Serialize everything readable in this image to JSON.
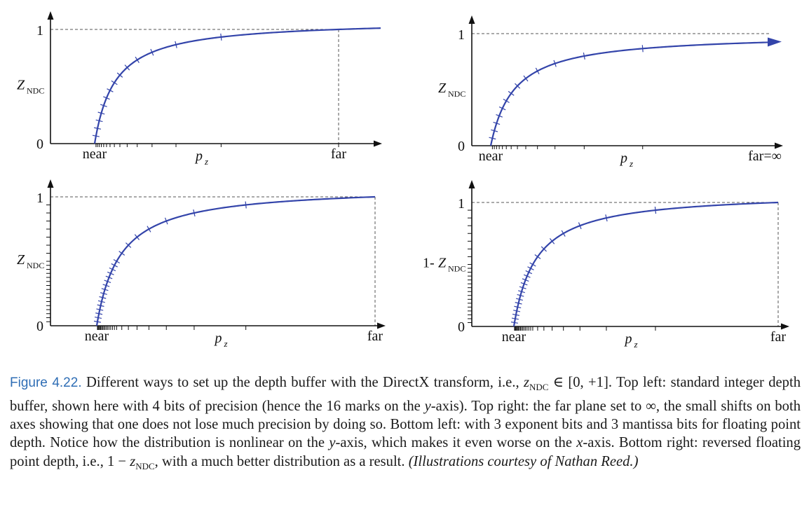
{
  "chart_data": [
    {
      "type": "line",
      "position": "top-left",
      "title": "",
      "function": "Z_NDC = (1 - near/p_z) / (1 - near/far)",
      "ylabel": "Z",
      "ylabel_sub": "NDC",
      "ylabel_prefix": "",
      "xlabel": "p",
      "xlabel_sub": "z",
      "x_ticks": [
        "near",
        "far"
      ],
      "y_ticks": [
        "0",
        "1"
      ],
      "near": 1,
      "far": 13,
      "xlim": [
        0,
        16
      ],
      "ylim": [
        0,
        1.08
      ],
      "precision": "4-bit integer",
      "y_marks": 16,
      "curve_marks_z": [
        0.0667,
        0.1333,
        0.2,
        0.2667,
        0.3333,
        0.4,
        0.4667,
        0.5333,
        0.6,
        0.6667,
        0.7333,
        0.8,
        0.8667,
        0.9333,
        1.0
      ],
      "far_guideline": true,
      "arrow_x": true,
      "arrow_y": true
    },
    {
      "type": "line",
      "position": "top-right",
      "title": "",
      "function": "Z_NDC = 1 - near/p_z",
      "ylabel": "Z",
      "ylabel_sub": "NDC",
      "ylabel_prefix": "",
      "xlabel": "p",
      "xlabel_sub": "z",
      "x_ticks": [
        "near",
        "far=∞"
      ],
      "y_ticks": [
        "0",
        "1"
      ],
      "near": 1,
      "far": "infinity",
      "xlim": [
        0,
        16
      ],
      "ylim": [
        0,
        1.08
      ],
      "precision": "4-bit integer",
      "y_marks": 16,
      "curve_marks_z": [
        0.0667,
        0.1333,
        0.2,
        0.2667,
        0.3333,
        0.4,
        0.4667,
        0.5333,
        0.6,
        0.6667,
        0.7333,
        0.8,
        0.8667
      ],
      "far_guideline": false,
      "arrow_x": true,
      "arrow_y": true,
      "curve_arrow": true
    },
    {
      "type": "line",
      "position": "bottom-left",
      "title": "",
      "function": "Z_NDC = (1 - near/p_z) / (1 - near/far)",
      "ylabel": "Z",
      "ylabel_sub": "NDC",
      "ylabel_prefix": "",
      "xlabel": "p",
      "xlabel_sub": "z",
      "x_ticks": [
        "near",
        "far"
      ],
      "y_ticks": [
        "0",
        "1"
      ],
      "near": 1,
      "far": 13,
      "xlim": [
        0,
        16
      ],
      "ylim": [
        0,
        1.08
      ],
      "precision": "float: 3 exponent bits, 3 mantissa bits",
      "float_exp_bits": 3,
      "float_mant_bits": 3,
      "far_guideline": true,
      "arrow_x": true,
      "arrow_y": true,
      "reversed": false
    },
    {
      "type": "line",
      "position": "bottom-right",
      "title": "",
      "function": "1 - Z_NDC (reversed floating point depth)",
      "ylabel": "Z",
      "ylabel_sub": "NDC",
      "ylabel_prefix": "1-",
      "xlabel": "p",
      "xlabel_sub": "z",
      "x_ticks": [
        "near",
        "far"
      ],
      "y_ticks": [
        "0",
        "1"
      ],
      "near": 1,
      "far": 13,
      "xlim": [
        0,
        16
      ],
      "ylim": [
        0,
        1.08
      ],
      "precision": "float: 3 exponent bits, 3 mantissa bits (reversed)",
      "float_exp_bits": 3,
      "float_mant_bits": 3,
      "far_guideline": true,
      "arrow_x": true,
      "arrow_y": true,
      "reversed": true
    }
  ],
  "colors": {
    "curve": "#3344aa",
    "axis": "#111111",
    "guide": "#555555",
    "caption_label": "#2f6eb5"
  },
  "caption": {
    "label": "Figure 4.22.",
    "text_1": " Different ways to set up the depth buffer with the DirectX transform, i.e., ",
    "math_1": "z",
    "math_1_sub": "NDC",
    "math_1_rest": " ∈ [0, +1].",
    "text_2": " Top left: standard integer depth buffer, shown here with 4 bits of precision (hence the 16 marks on the ",
    "math_2": "y",
    "text_3": "-axis). Top right: the far plane set to ∞, the small shifts on both axes showing that one does not lose much precision by doing so. Bottom left: with 3 exponent bits and 3 mantissa bits for floating point depth. Notice how the distribution is nonlinear on the ",
    "math_3": "y",
    "text_4": "-axis, which makes it even worse on the ",
    "math_4": "x",
    "text_5": "-axis. Bottom right: reversed floating point depth, i.e., 1 − ",
    "math_5": "z",
    "math_5_sub": "NDC",
    "text_6": ", with a much better distribution as a result. ",
    "credit": "(Illustrations courtesy of Nathan Reed.)"
  }
}
